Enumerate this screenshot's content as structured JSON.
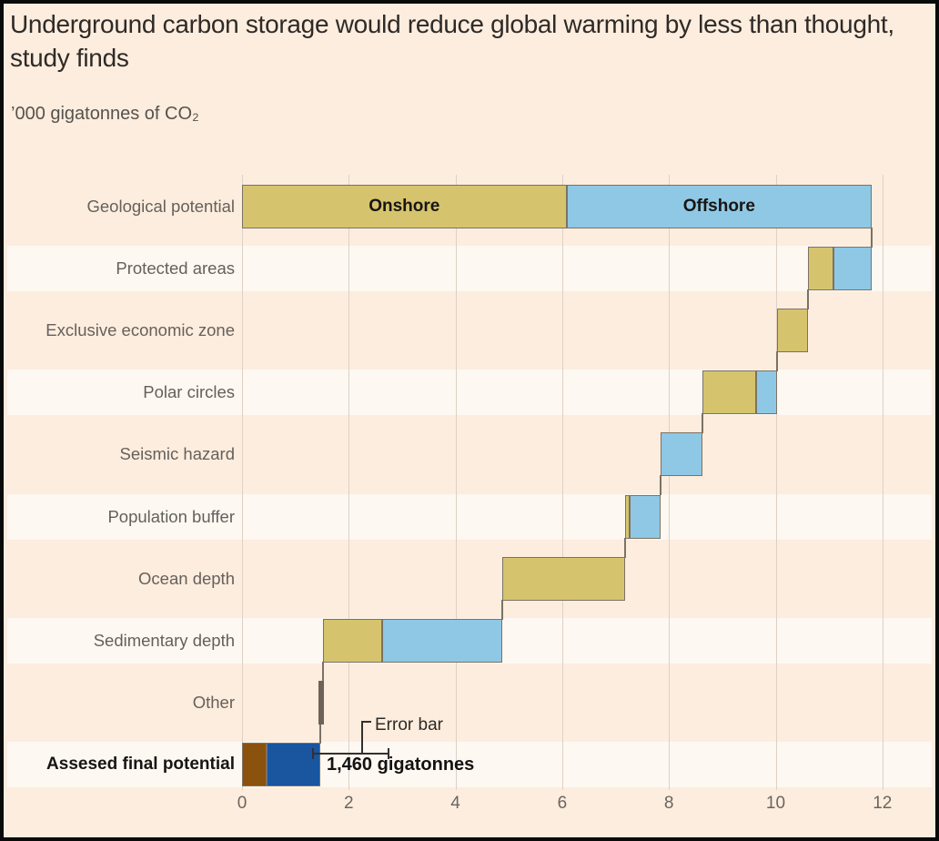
{
  "title": "Underground carbon storage would reduce global warming by less than thought, study finds",
  "subtitle": "’000 gigatonnes of CO₂",
  "colors": {
    "background": "#fdedde",
    "row_stripe": "#fdf8f2",
    "onshore": "#d5c46d",
    "offshore": "#8fc8e4",
    "other": "#6e635a",
    "final_onshore": "#8a520c",
    "final_offshore": "#1a55a0",
    "bar_border": "#7b7265",
    "gridline": "#ddd1c5",
    "text_dark": "#2e2a27",
    "text_muted": "#66605c"
  },
  "chart_data": {
    "type": "waterfall-bar",
    "title": "Underground carbon storage would reduce global warming by less than thought, study finds",
    "x_unit": "’000 gigatonnes of CO₂",
    "x_ticks": [
      0,
      2,
      4,
      6,
      8,
      10,
      12
    ],
    "xlim": [
      0,
      12.2
    ],
    "grid": true,
    "inline_legend": [
      "Onshore",
      "Offshore"
    ],
    "rows": [
      {
        "label": "Geological potential",
        "bold": false,
        "striped": false,
        "segments": [
          {
            "from": 0,
            "to": 6.08,
            "color": "onshore",
            "text": "Onshore"
          },
          {
            "from": 6.08,
            "to": 11.8,
            "color": "offshore",
            "text": "Offshore"
          }
        ]
      },
      {
        "label": "Protected areas",
        "bold": false,
        "striped": true,
        "segments": [
          {
            "from": 10.6,
            "to": 11.09,
            "color": "onshore"
          },
          {
            "from": 11.09,
            "to": 11.8,
            "color": "offshore"
          }
        ]
      },
      {
        "label": "Exclusive economic zone",
        "bold": false,
        "striped": false,
        "segments": [
          {
            "from": 10.03,
            "to": 10.6,
            "color": "onshore"
          }
        ]
      },
      {
        "label": "Polar circles",
        "bold": false,
        "striped": true,
        "segments": [
          {
            "from": 8.62,
            "to": 9.64,
            "color": "onshore"
          },
          {
            "from": 9.64,
            "to": 10.03,
            "color": "offshore"
          }
        ]
      },
      {
        "label": "Seismic hazard",
        "bold": false,
        "striped": false,
        "segments": [
          {
            "from": 7.85,
            "to": 8.62,
            "color": "offshore"
          }
        ]
      },
      {
        "label": "Population buffer",
        "bold": false,
        "striped": true,
        "segments": [
          {
            "from": 7.17,
            "to": 7.26,
            "color": "onshore"
          },
          {
            "from": 7.26,
            "to": 7.85,
            "color": "offshore"
          }
        ]
      },
      {
        "label": "Ocean depth",
        "bold": false,
        "striped": false,
        "segments": [
          {
            "from": 4.87,
            "to": 7.17,
            "color": "onshore"
          }
        ]
      },
      {
        "label": "Sedimentary depth",
        "bold": false,
        "striped": true,
        "segments": [
          {
            "from": 1.52,
            "to": 2.62,
            "color": "onshore"
          },
          {
            "from": 2.62,
            "to": 4.87,
            "color": "offshore"
          }
        ]
      },
      {
        "label": "Other",
        "bold": false,
        "striped": false,
        "segments": [
          {
            "from": 1.44,
            "to": 1.54,
            "color": "other",
            "borderless": true
          }
        ]
      },
      {
        "label": "Assesed final potential",
        "bold": true,
        "striped": true,
        "segments": [
          {
            "from": 0,
            "to": 0.46,
            "color": "final_onshore"
          },
          {
            "from": 0.46,
            "to": 1.46,
            "color": "final_offshore"
          }
        ]
      }
    ],
    "connectors": [
      {
        "x": 11.8,
        "from_row": 0,
        "to_row": 1
      },
      {
        "x": 10.6,
        "from_row": 1,
        "to_row": 2
      },
      {
        "x": 10.03,
        "from_row": 2,
        "to_row": 3
      },
      {
        "x": 8.62,
        "from_row": 3,
        "to_row": 4
      },
      {
        "x": 7.85,
        "from_row": 4,
        "to_row": 5
      },
      {
        "x": 7.17,
        "from_row": 5,
        "to_row": 6
      },
      {
        "x": 4.87,
        "from_row": 6,
        "to_row": 7
      },
      {
        "x": 1.52,
        "from_row": 7,
        "to_row": 8
      },
      {
        "x": 1.47,
        "from_row": 8,
        "to_row": 9
      }
    ],
    "error_bar": {
      "row": 9,
      "from": 1.33,
      "to": 2.74,
      "label": "Error bar"
    },
    "final_annotation": "1,460 gigatonnes"
  }
}
